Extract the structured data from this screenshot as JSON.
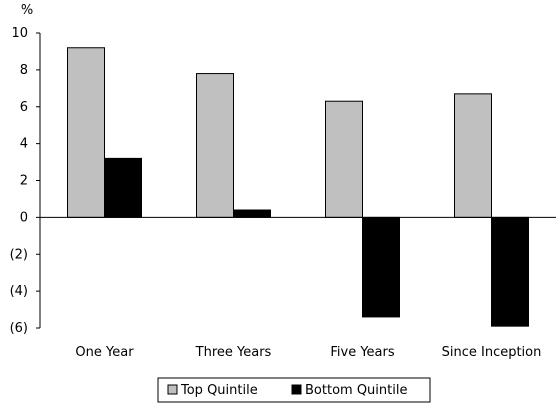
{
  "chart_data": {
    "type": "bar",
    "unit_label": "%",
    "categories": [
      "One Year",
      "Three Years",
      "Five Years",
      "Since Inception"
    ],
    "series": [
      {
        "name": "Top Quintile",
        "color": "#c0c0c0",
        "values": [
          9.2,
          7.8,
          6.3,
          6.7
        ]
      },
      {
        "name": "Bottom Quintile",
        "color": "#000000",
        "values": [
          3.2,
          0.4,
          -5.4,
          -5.9
        ]
      }
    ],
    "ylim": [
      -6,
      10
    ],
    "yticks": [
      10,
      8,
      6,
      4,
      2,
      0,
      -2,
      -4,
      -6
    ],
    "ytick_labels": [
      "10",
      "8",
      "6",
      "4",
      "2",
      "0",
      "(2)",
      "(4)",
      "(6)"
    ],
    "grid": false,
    "legend": "bottom"
  }
}
